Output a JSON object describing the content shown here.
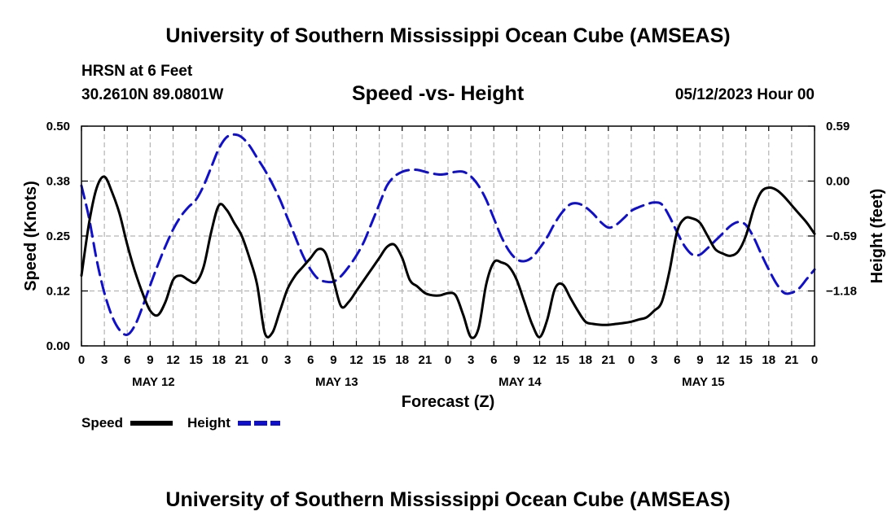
{
  "header": {
    "title_top": "University of Southern Mississippi Ocean Cube (AMSEAS)",
    "title_bottom": "University of Southern Mississippi Ocean Cube (AMSEAS)",
    "station": "HRSN at 6 Feet",
    "coords": "30.2610N  89.0801W",
    "subtitle": "Speed -vs- Height",
    "date": "05/12/2023 Hour 00"
  },
  "chart_data": {
    "type": "line",
    "title": "Speed -vs- Height",
    "xlabel": "Forecast (Z)",
    "ylabel_left": "Speed (Knots)",
    "ylabel_right": "Height (feet)",
    "x_range": [
      0,
      96
    ],
    "x_step_hours": 3,
    "x_tick_labels": [
      "0",
      "3",
      "6",
      "9",
      "12",
      "15",
      "18",
      "21",
      "0",
      "3",
      "6",
      "9",
      "12",
      "15",
      "18",
      "21",
      "0",
      "3",
      "6",
      "9",
      "12",
      "15",
      "18",
      "21",
      "0",
      "3",
      "6",
      "9",
      "12",
      "15",
      "18",
      "21",
      "0"
    ],
    "day_labels": [
      {
        "label": "MAY 12",
        "hour": 9
      },
      {
        "label": "MAY 13",
        "hour": 33
      },
      {
        "label": "MAY 14",
        "hour": 57
      },
      {
        "label": "MAY 15",
        "hour": 81
      }
    ],
    "ylim_left": [
      0,
      0.5
    ],
    "yticks_left": [
      {
        "value": 0.0,
        "label": "0.00"
      },
      {
        "value": 0.125,
        "label": "0.12"
      },
      {
        "value": 0.25,
        "label": "0.25"
      },
      {
        "value": 0.375,
        "label": "0.38"
      },
      {
        "value": 0.5,
        "label": "0.50"
      }
    ],
    "ylim_right": [
      -1.77,
      0.59
    ],
    "yticks_right": [
      {
        "value": 0.59,
        "label": "0.59"
      },
      {
        "value": 0.0,
        "label": "0.00"
      },
      {
        "value": -0.59,
        "label": "−0.59"
      },
      {
        "value": -1.18,
        "label": "−1.18"
      }
    ],
    "grid": true,
    "legend": {
      "position": "bottom-left",
      "entries": [
        "Speed",
        "Height"
      ]
    },
    "series": [
      {
        "name": "Speed",
        "axis": "left",
        "color": "#000000",
        "dash": "solid",
        "points": [
          [
            0,
            0.16
          ],
          [
            1,
            0.28
          ],
          [
            2,
            0.36
          ],
          [
            3,
            0.385
          ],
          [
            4,
            0.35
          ],
          [
            5,
            0.3
          ],
          [
            6,
            0.23
          ],
          [
            7,
            0.17
          ],
          [
            8,
            0.12
          ],
          [
            9,
            0.08
          ],
          [
            10,
            0.07
          ],
          [
            11,
            0.1
          ],
          [
            12,
            0.15
          ],
          [
            13,
            0.16
          ],
          [
            14,
            0.15
          ],
          [
            15,
            0.145
          ],
          [
            16,
            0.18
          ],
          [
            17,
            0.26
          ],
          [
            18,
            0.32
          ],
          [
            19,
            0.31
          ],
          [
            20,
            0.28
          ],
          [
            21,
            0.25
          ],
          [
            22,
            0.2
          ],
          [
            23,
            0.14
          ],
          [
            24,
            0.03
          ],
          [
            25,
            0.03
          ],
          [
            26,
            0.08
          ],
          [
            27,
            0.13
          ],
          [
            28,
            0.16
          ],
          [
            29,
            0.18
          ],
          [
            30,
            0.2
          ],
          [
            31,
            0.22
          ],
          [
            32,
            0.21
          ],
          [
            33,
            0.15
          ],
          [
            34,
            0.09
          ],
          [
            35,
            0.1
          ],
          [
            36,
            0.125
          ],
          [
            37,
            0.15
          ],
          [
            38,
            0.175
          ],
          [
            39,
            0.2
          ],
          [
            40,
            0.225
          ],
          [
            41,
            0.23
          ],
          [
            42,
            0.2
          ],
          [
            43,
            0.15
          ],
          [
            44,
            0.135
          ],
          [
            45,
            0.12
          ],
          [
            46,
            0.115
          ],
          [
            47,
            0.115
          ],
          [
            48,
            0.12
          ],
          [
            49,
            0.115
          ],
          [
            50,
            0.07
          ],
          [
            51,
            0.02
          ],
          [
            52,
            0.04
          ],
          [
            53,
            0.14
          ],
          [
            54,
            0.19
          ],
          [
            55,
            0.19
          ],
          [
            56,
            0.18
          ],
          [
            57,
            0.15
          ],
          [
            58,
            0.1
          ],
          [
            59,
            0.05
          ],
          [
            60,
            0.02
          ],
          [
            61,
            0.06
          ],
          [
            62,
            0.13
          ],
          [
            63,
            0.14
          ],
          [
            64,
            0.11
          ],
          [
            65,
            0.08
          ],
          [
            66,
            0.055
          ],
          [
            67,
            0.05
          ],
          [
            68,
            0.048
          ],
          [
            69,
            0.048
          ],
          [
            70,
            0.05
          ],
          [
            71,
            0.052
          ],
          [
            72,
            0.055
          ],
          [
            73,
            0.06
          ],
          [
            74,
            0.065
          ],
          [
            75,
            0.08
          ],
          [
            76,
            0.1
          ],
          [
            77,
            0.17
          ],
          [
            78,
            0.26
          ],
          [
            79,
            0.29
          ],
          [
            80,
            0.29
          ],
          [
            81,
            0.28
          ],
          [
            82,
            0.25
          ],
          [
            83,
            0.22
          ],
          [
            84,
            0.21
          ],
          [
            85,
            0.205
          ],
          [
            86,
            0.215
          ],
          [
            87,
            0.25
          ],
          [
            88,
            0.31
          ],
          [
            89,
            0.35
          ],
          [
            90,
            0.36
          ],
          [
            91,
            0.355
          ],
          [
            92,
            0.34
          ],
          [
            93,
            0.32
          ],
          [
            94,
            0.3
          ],
          [
            95,
            0.28
          ],
          [
            96,
            0.255
          ]
        ]
      },
      {
        "name": "Height",
        "axis": "right",
        "color": "#1010cc",
        "dash": "dashed",
        "points": [
          [
            0,
            -0.05
          ],
          [
            1,
            -0.4
          ],
          [
            2,
            -0.85
          ],
          [
            3,
            -1.2
          ],
          [
            4,
            -1.45
          ],
          [
            5,
            -1.6
          ],
          [
            6,
            -1.65
          ],
          [
            7,
            -1.55
          ],
          [
            8,
            -1.35
          ],
          [
            9,
            -1.12
          ],
          [
            10,
            -0.9
          ],
          [
            11,
            -0.7
          ],
          [
            12,
            -0.52
          ],
          [
            13,
            -0.38
          ],
          [
            14,
            -0.28
          ],
          [
            15,
            -0.2
          ],
          [
            16,
            -0.05
          ],
          [
            17,
            0.15
          ],
          [
            18,
            0.35
          ],
          [
            19,
            0.47
          ],
          [
            20,
            0.5
          ],
          [
            21,
            0.47
          ],
          [
            22,
            0.38
          ],
          [
            23,
            0.25
          ],
          [
            24,
            0.12
          ],
          [
            25,
            -0.03
          ],
          [
            26,
            -0.2
          ],
          [
            27,
            -0.4
          ],
          [
            28,
            -0.6
          ],
          [
            29,
            -0.8
          ],
          [
            30,
            -0.95
          ],
          [
            31,
            -1.05
          ],
          [
            32,
            -1.08
          ],
          [
            33,
            -1.08
          ],
          [
            34,
            -1.02
          ],
          [
            35,
            -0.92
          ],
          [
            36,
            -0.8
          ],
          [
            37,
            -0.65
          ],
          [
            38,
            -0.45
          ],
          [
            39,
            -0.25
          ],
          [
            40,
            -0.05
          ],
          [
            41,
            0.05
          ],
          [
            42,
            0.1
          ],
          [
            43,
            0.12
          ],
          [
            44,
            0.12
          ],
          [
            45,
            0.1
          ],
          [
            46,
            0.08
          ],
          [
            47,
            0.07
          ],
          [
            48,
            0.08
          ],
          [
            49,
            0.1
          ],
          [
            50,
            0.1
          ],
          [
            51,
            0.05
          ],
          [
            52,
            -0.05
          ],
          [
            53,
            -0.2
          ],
          [
            54,
            -0.4
          ],
          [
            55,
            -0.6
          ],
          [
            56,
            -0.75
          ],
          [
            57,
            -0.84
          ],
          [
            58,
            -0.86
          ],
          [
            59,
            -0.82
          ],
          [
            60,
            -0.72
          ],
          [
            61,
            -0.6
          ],
          [
            62,
            -0.45
          ],
          [
            63,
            -0.33
          ],
          [
            64,
            -0.25
          ],
          [
            65,
            -0.24
          ],
          [
            66,
            -0.28
          ],
          [
            67,
            -0.35
          ],
          [
            68,
            -0.44
          ],
          [
            69,
            -0.5
          ],
          [
            70,
            -0.47
          ],
          [
            71,
            -0.4
          ],
          [
            72,
            -0.32
          ],
          [
            73,
            -0.28
          ],
          [
            74,
            -0.25
          ],
          [
            75,
            -0.23
          ],
          [
            76,
            -0.25
          ],
          [
            77,
            -0.38
          ],
          [
            78,
            -0.55
          ],
          [
            79,
            -0.7
          ],
          [
            80,
            -0.79
          ],
          [
            81,
            -0.79
          ],
          [
            82,
            -0.72
          ],
          [
            83,
            -0.64
          ],
          [
            84,
            -0.56
          ],
          [
            85,
            -0.48
          ],
          [
            86,
            -0.44
          ],
          [
            87,
            -0.47
          ],
          [
            88,
            -0.6
          ],
          [
            89,
            -0.78
          ],
          [
            90,
            -0.95
          ],
          [
            91,
            -1.1
          ],
          [
            92,
            -1.2
          ],
          [
            93,
            -1.2
          ],
          [
            94,
            -1.15
          ],
          [
            95,
            -1.05
          ],
          [
            96,
            -0.95
          ]
        ]
      }
    ]
  }
}
